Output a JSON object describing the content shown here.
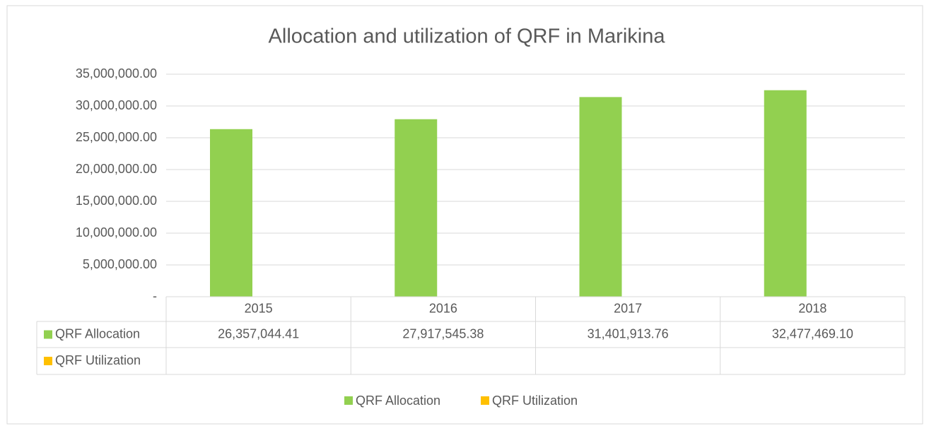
{
  "chart_data": {
    "type": "bar",
    "title": "Allocation and utilization of QRF in Marikina",
    "categories": [
      "2015",
      "2016",
      "2017",
      "2018"
    ],
    "series": [
      {
        "name": "QRF Allocation",
        "color": "#92d050",
        "values": [
          26357044.41,
          27917545.38,
          31401913.76,
          32477469.1
        ],
        "value_labels": [
          "26,357,044.41",
          "27,917,545.38",
          "31,401,913.76",
          "32,477,469.10"
        ]
      },
      {
        "name": "QRF Utilization",
        "color": "#ffc000",
        "values": [
          null,
          null,
          null,
          null
        ]
      }
    ],
    "ylim": [
      0,
      35000000
    ],
    "yticks": [
      {
        "value": 0,
        "label": "-"
      },
      {
        "value": 5000000,
        "label": "5,000,000.00"
      },
      {
        "value": 10000000,
        "label": "10,000,000.00"
      },
      {
        "value": 15000000,
        "label": "15,000,000.00"
      },
      {
        "value": 20000000,
        "label": "20,000,000.00"
      },
      {
        "value": 25000000,
        "label": "25,000,000.00"
      },
      {
        "value": 30000000,
        "label": "30,000,000.00"
      },
      {
        "value": 35000000,
        "label": "35,000,000.00"
      }
    ],
    "grid": true,
    "legend": "bottom"
  }
}
